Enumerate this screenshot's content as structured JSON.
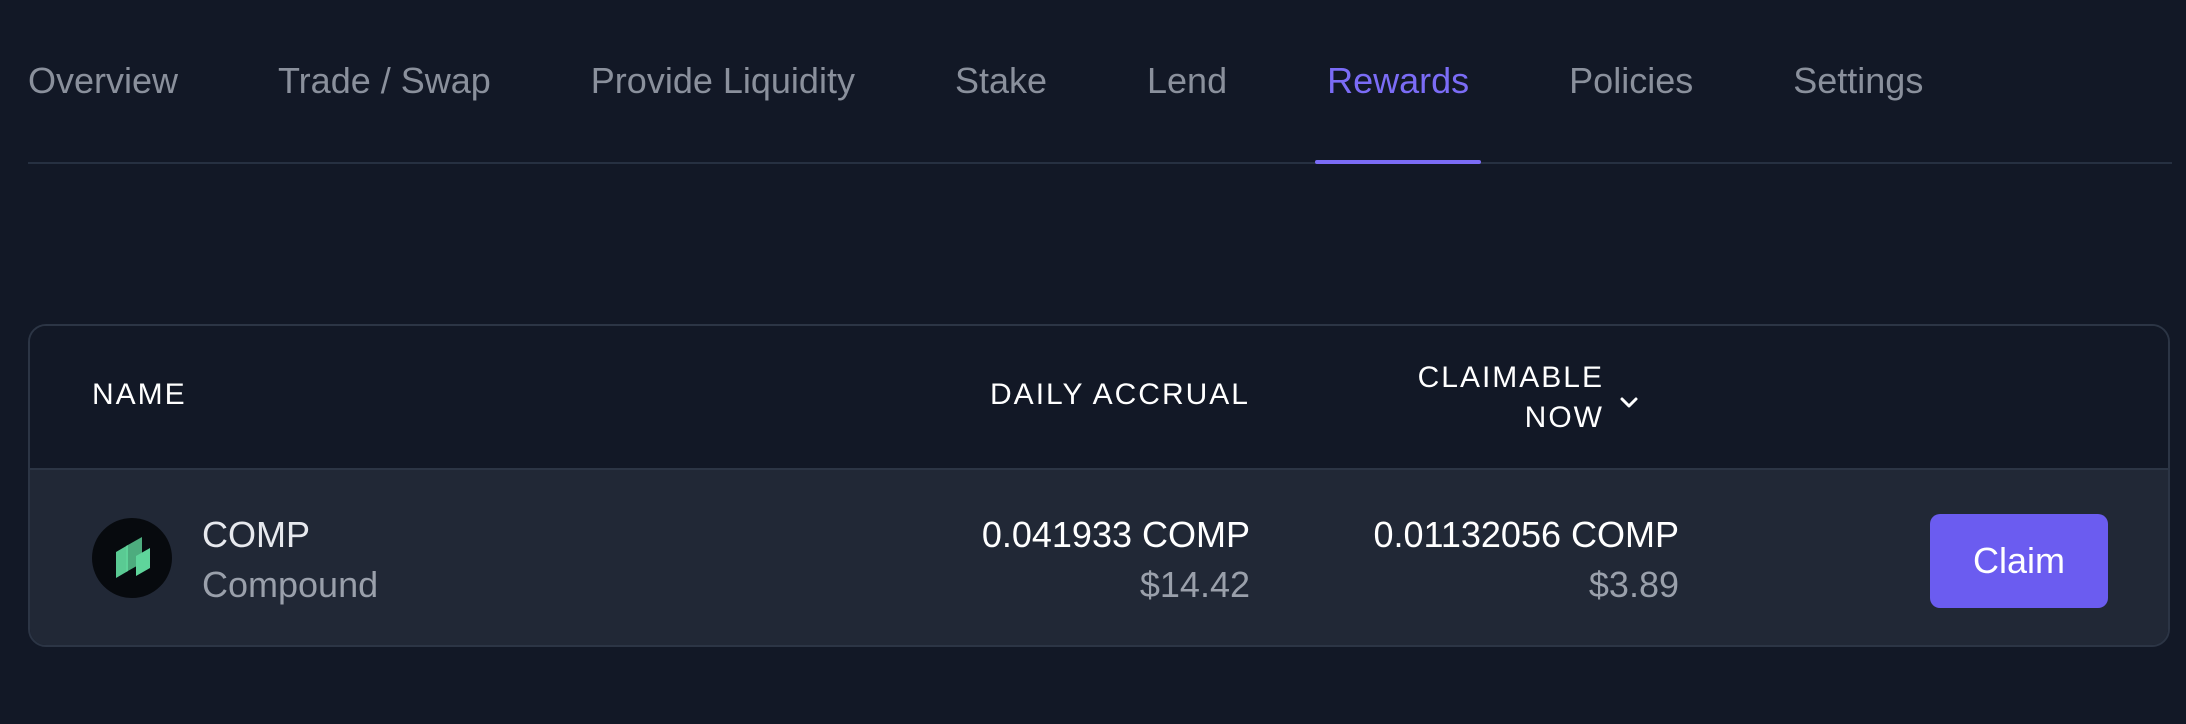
{
  "nav": {
    "tabs": [
      {
        "label": "Overview"
      },
      {
        "label": "Trade / Swap"
      },
      {
        "label": "Provide Liquidity"
      },
      {
        "label": "Stake"
      },
      {
        "label": "Lend"
      },
      {
        "label": "Rewards"
      },
      {
        "label": "Policies"
      },
      {
        "label": "Settings"
      }
    ],
    "active": "Rewards"
  },
  "table": {
    "headers": {
      "name": "NAME",
      "daily_accrual": "DAILY ACCRUAL",
      "claimable_line1": "CLAIMABLE",
      "claimable_line2": "NOW",
      "sort_icon": "chevron-down-icon"
    },
    "rows": [
      {
        "icon": "compound-logo-icon",
        "symbol": "COMP",
        "name": "Compound",
        "daily_amount": "0.041933 COMP",
        "daily_usd": "$14.42",
        "claimable_amount": "0.01132056 COMP",
        "claimable_usd": "$3.89",
        "action_label": "Claim"
      }
    ]
  },
  "colors": {
    "background": "#121826",
    "accent": "#7b6cf6",
    "button": "#6b5cf0",
    "row_background": "#212836",
    "compound_green": "#5fd59b"
  }
}
